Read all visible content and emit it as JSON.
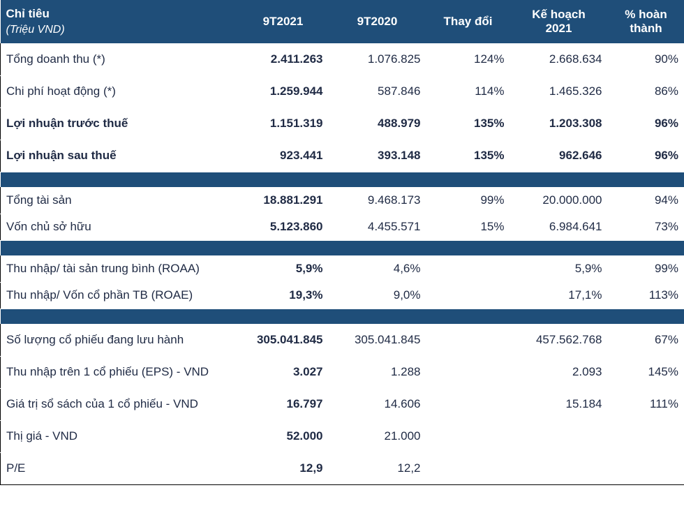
{
  "header": {
    "c0_line1": "Chỉ tiêu",
    "c0_line2": "(Triệu VND)",
    "c1": "9T2021",
    "c2": "9T2020",
    "c3": "Thay đổi",
    "c4_line1": "Kế hoạch",
    "c4_line2": "2021",
    "c5_line1": "% hoàn",
    "c5_line2": "thành"
  },
  "s1": {
    "r0": {
      "lbl": "Tổng doanh thu (*)",
      "v1": "2.411.263",
      "v2": "1.076.825",
      "v3": "124%",
      "v4": "2.668.634",
      "v5": "90%"
    },
    "r1": {
      "lbl": "Chi phí hoạt động (*)",
      "v1": "1.259.944",
      "v2": "587.846",
      "v3": "114%",
      "v4": "1.465.326",
      "v5": "86%"
    },
    "r2": {
      "lbl": "Lợi nhuận trước thuế",
      "v1": "1.151.319",
      "v2": "488.979",
      "v3": "135%",
      "v4": "1.203.308",
      "v5": "96%"
    },
    "r3": {
      "lbl": "Lợi nhuận sau thuế",
      "v1": "923.441",
      "v2": "393.148",
      "v3": "135%",
      "v4": "962.646",
      "v5": "96%"
    }
  },
  "s2": {
    "r0": {
      "lbl": "Tổng tài sản",
      "v1": "18.881.291",
      "v2": "9.468.173",
      "v3": "99%",
      "v4": "20.000.000",
      "v5": "94%"
    },
    "r1": {
      "lbl": "Vốn chủ sở hữu",
      "v1": "5.123.860",
      "v2": "4.455.571",
      "v3": "15%",
      "v4": "6.984.641",
      "v5": "73%"
    }
  },
  "s3": {
    "r0": {
      "lbl": "Thu nhập/ tài sản trung bình (ROAA)",
      "v1": "5,9%",
      "v2": "4,6%",
      "v3": "",
      "v4": "5,9%",
      "v5": "99%"
    },
    "r1": {
      "lbl": "Thu nhập/ Vốn cổ phần TB (ROAE)",
      "v1": "19,3%",
      "v2": "9,0%",
      "v3": "",
      "v4": "17,1%",
      "v5": "113%"
    }
  },
  "s4": {
    "r0": {
      "lbl": "Số lượng cổ phiếu đang lưu hành",
      "v1": "305.041.845",
      "v2": "305.041.845",
      "v3": "",
      "v4": "457.562.768",
      "v5": "67%"
    },
    "r1": {
      "lbl": "Thu nhập trên 1 cổ phiếu (EPS) - VND",
      "v1": "3.027",
      "v2": "1.288",
      "v3": "",
      "v4": "2.093",
      "v5": "145%"
    },
    "r2": {
      "lbl": "Giá trị sổ sách của 1 cổ phiếu - VND",
      "v1": "16.797",
      "v2": "14.606",
      "v3": "",
      "v4": "15.184",
      "v5": "111%"
    },
    "r3": {
      "lbl": "Thị giá - VND",
      "v1": "52.000",
      "v2": "21.000",
      "v3": "",
      "v4": "",
      "v5": ""
    },
    "r4": {
      "lbl": "P/E",
      "v1": "12,9",
      "v2": "12,2",
      "v3": "",
      "v4": "",
      "v5": ""
    }
  }
}
